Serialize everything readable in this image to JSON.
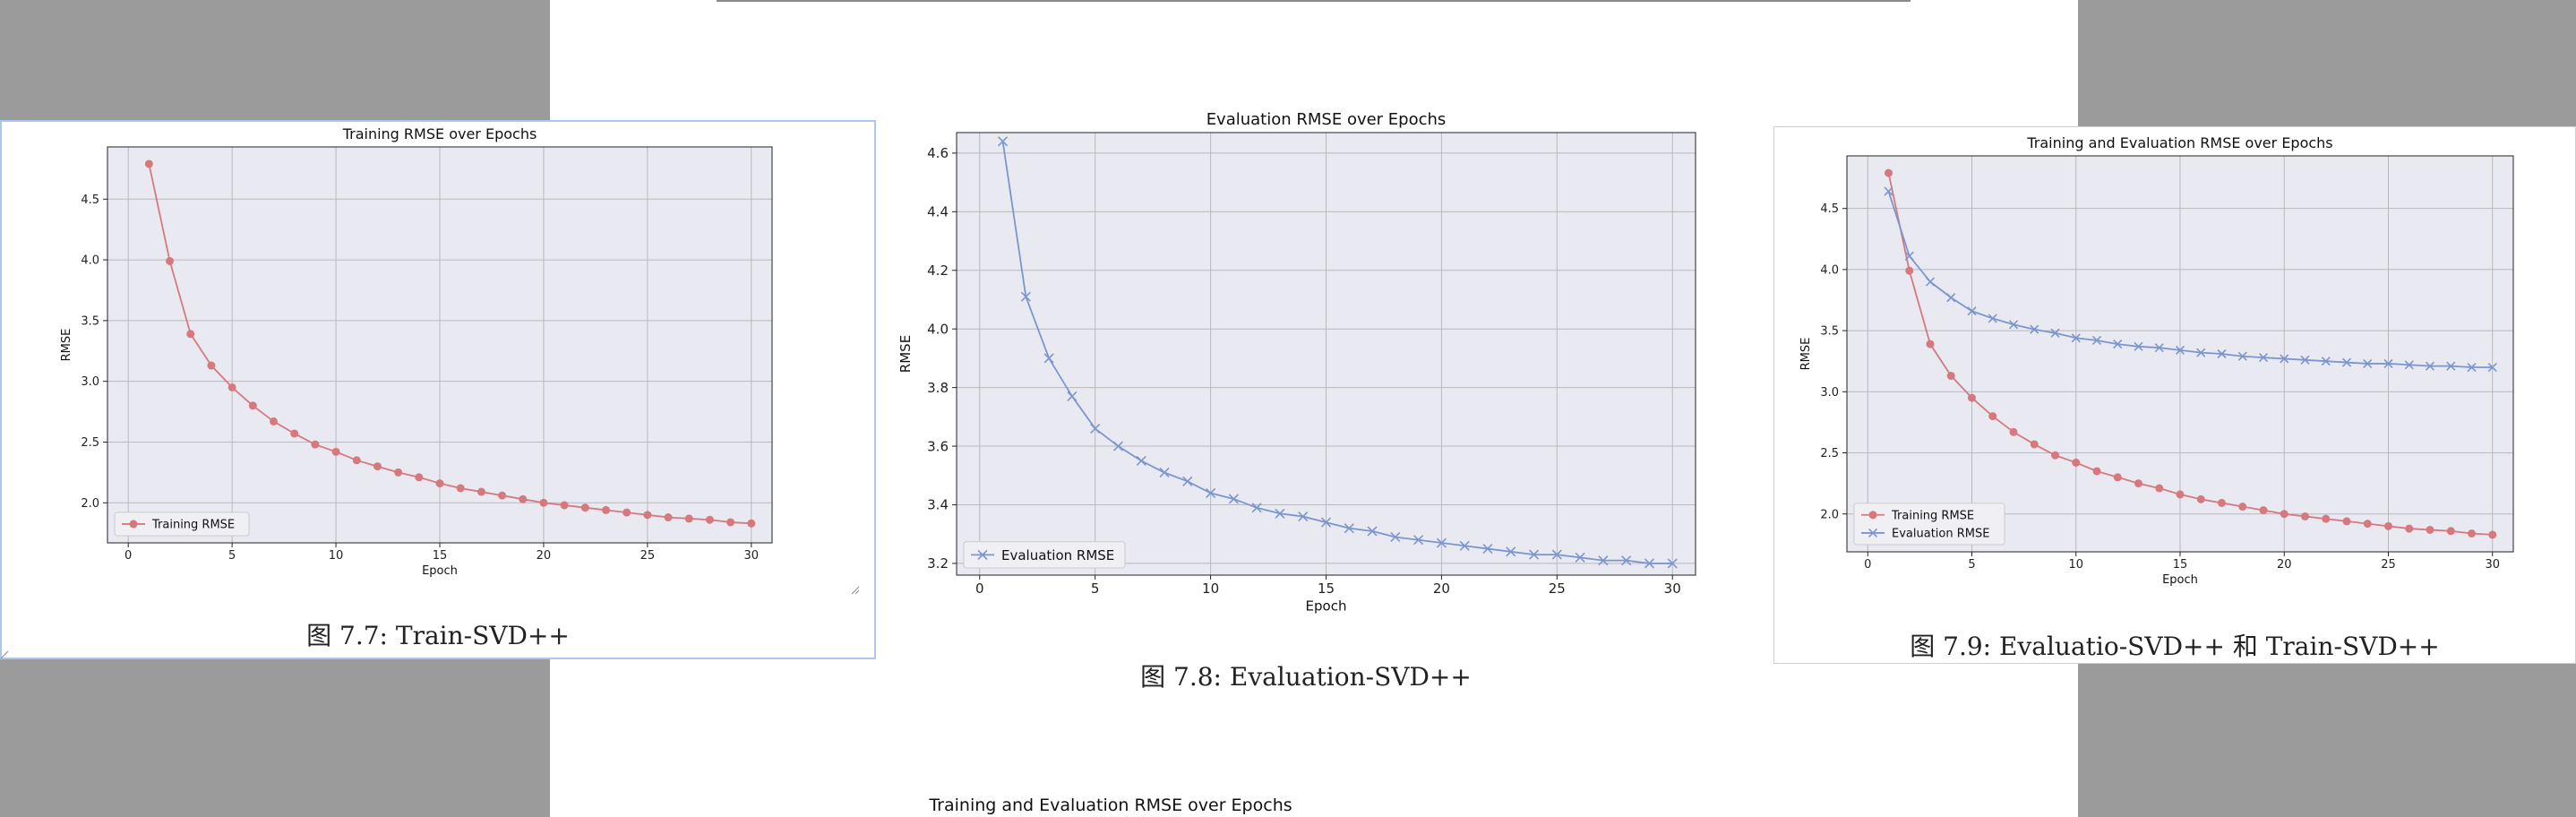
{
  "captions": {
    "left": "图 7.7: Train-SVD++",
    "middle": "图 7.8: Evaluation-SVD++",
    "right": "图 7.9: Evaluatio-SVD++ 和 Train-SVD++"
  },
  "bottom_title": "Training and Evaluation RMSE over Epochs",
  "colors": {
    "training": "#d6797f",
    "evaluation": "#7b96cf",
    "plot_bg": "#e9e9f1",
    "grid": "#b9b9b9",
    "page_bg": "#9b9b9b",
    "selected_border": "#a9c8ee"
  },
  "chart_data": [
    {
      "type": "line",
      "title": "Training RMSE over Epochs",
      "xlabel": "Epoch",
      "ylabel": "RMSE",
      "xlim": [
        -1,
        31
      ],
      "ylim": [
        1.67,
        4.93
      ],
      "xticks": [
        0,
        5,
        10,
        15,
        20,
        25,
        30
      ],
      "yticks": [
        2.0,
        2.5,
        3.0,
        3.5,
        4.0,
        4.5
      ],
      "grid": true,
      "legend_position": "lower-left",
      "series": [
        {
          "name": "Training RMSE",
          "marker": "circle",
          "color": "#d6797f",
          "x": [
            1,
            2,
            3,
            4,
            5,
            6,
            7,
            8,
            9,
            10,
            11,
            12,
            13,
            14,
            15,
            16,
            17,
            18,
            19,
            20,
            21,
            22,
            23,
            24,
            25,
            26,
            27,
            28,
            29,
            30
          ],
          "y": [
            4.79,
            3.99,
            3.39,
            3.13,
            2.95,
            2.8,
            2.67,
            2.57,
            2.48,
            2.42,
            2.35,
            2.3,
            2.25,
            2.21,
            2.16,
            2.12,
            2.09,
            2.06,
            2.03,
            2.0,
            1.98,
            1.96,
            1.94,
            1.92,
            1.9,
            1.88,
            1.87,
            1.86,
            1.84,
            1.83
          ]
        }
      ]
    },
    {
      "type": "line",
      "title": "Evaluation RMSE over Epochs",
      "xlabel": "Epoch",
      "ylabel": "RMSE",
      "xlim": [
        -1,
        31
      ],
      "ylim": [
        3.16,
        4.67
      ],
      "xticks": [
        0,
        5,
        10,
        15,
        20,
        25,
        30
      ],
      "yticks": [
        3.2,
        3.4,
        3.6,
        3.8,
        4.0,
        4.2,
        4.4,
        4.6
      ],
      "grid": true,
      "legend_position": "lower-left",
      "series": [
        {
          "name": "Evaluation RMSE",
          "marker": "x",
          "color": "#7b96cf",
          "x": [
            1,
            2,
            3,
            4,
            5,
            6,
            7,
            8,
            9,
            10,
            11,
            12,
            13,
            14,
            15,
            16,
            17,
            18,
            19,
            20,
            21,
            22,
            23,
            24,
            25,
            26,
            27,
            28,
            29,
            30
          ],
          "y": [
            4.64,
            4.11,
            3.9,
            3.77,
            3.66,
            3.6,
            3.55,
            3.51,
            3.48,
            3.44,
            3.42,
            3.39,
            3.37,
            3.36,
            3.34,
            3.32,
            3.31,
            3.29,
            3.28,
            3.27,
            3.26,
            3.25,
            3.24,
            3.23,
            3.23,
            3.22,
            3.21,
            3.21,
            3.2,
            3.2
          ]
        }
      ]
    },
    {
      "type": "line",
      "title": "Training and Evaluation RMSE over Epochs",
      "xlabel": "Epoch",
      "ylabel": "RMSE",
      "xlim": [
        -1,
        31
      ],
      "ylim": [
        1.69,
        4.93
      ],
      "xticks": [
        0,
        5,
        10,
        15,
        20,
        25,
        30
      ],
      "yticks": [
        2.0,
        2.5,
        3.0,
        3.5,
        4.0,
        4.5
      ],
      "grid": true,
      "legend_position": "lower-left",
      "series": [
        {
          "name": "Training RMSE",
          "marker": "circle",
          "color": "#d6797f",
          "x": [
            1,
            2,
            3,
            4,
            5,
            6,
            7,
            8,
            9,
            10,
            11,
            12,
            13,
            14,
            15,
            16,
            17,
            18,
            19,
            20,
            21,
            22,
            23,
            24,
            25,
            26,
            27,
            28,
            29,
            30
          ],
          "y": [
            4.79,
            3.99,
            3.39,
            3.13,
            2.95,
            2.8,
            2.67,
            2.57,
            2.48,
            2.42,
            2.35,
            2.3,
            2.25,
            2.21,
            2.16,
            2.12,
            2.09,
            2.06,
            2.03,
            2.0,
            1.98,
            1.96,
            1.94,
            1.92,
            1.9,
            1.88,
            1.87,
            1.86,
            1.84,
            1.83
          ]
        },
        {
          "name": "Evaluation RMSE",
          "marker": "x",
          "color": "#7b96cf",
          "x": [
            1,
            2,
            3,
            4,
            5,
            6,
            7,
            8,
            9,
            10,
            11,
            12,
            13,
            14,
            15,
            16,
            17,
            18,
            19,
            20,
            21,
            22,
            23,
            24,
            25,
            26,
            27,
            28,
            29,
            30
          ],
          "y": [
            4.64,
            4.11,
            3.9,
            3.77,
            3.66,
            3.6,
            3.55,
            3.51,
            3.48,
            3.44,
            3.42,
            3.39,
            3.37,
            3.36,
            3.34,
            3.32,
            3.31,
            3.29,
            3.28,
            3.27,
            3.26,
            3.25,
            3.24,
            3.23,
            3.23,
            3.22,
            3.21,
            3.21,
            3.2,
            3.2
          ]
        }
      ]
    }
  ]
}
